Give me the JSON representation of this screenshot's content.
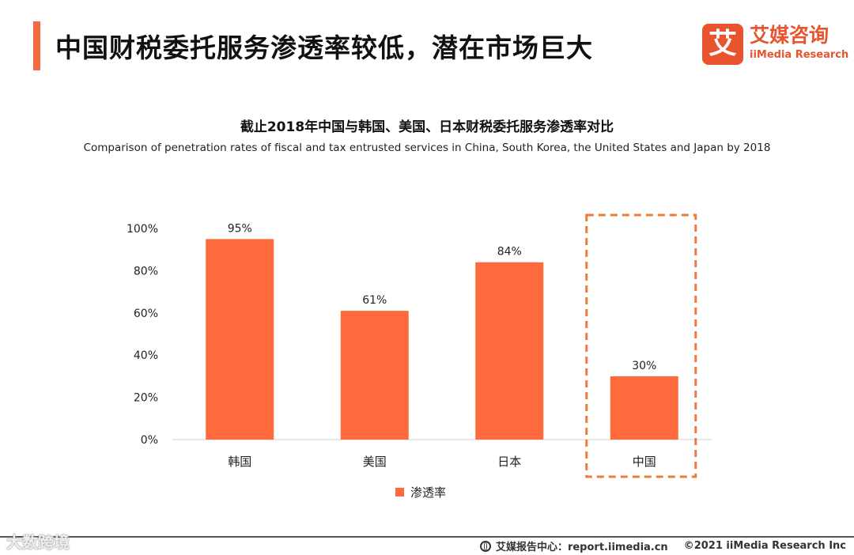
{
  "header": {
    "title": "中国财税委托服务渗透率较低，潜在市场巨大",
    "accent_color": "#f46a3e"
  },
  "brand": {
    "mark": "艾",
    "name": "艾媒咨询",
    "name_en": "iiMedia Research",
    "color": "#e8542e"
  },
  "chart_data": {
    "type": "bar",
    "title": "截止2018年中国与韩国、美国、日本财税委托服务渗透率对比",
    "subtitle": "Comparison of penetration rates of fiscal and tax entrusted services in China, South Korea, the United States and Japan by 2018",
    "categories": [
      "韩国",
      "美国",
      "日本",
      "中国"
    ],
    "series": [
      {
        "name": "渗透率",
        "values": [
          95,
          61,
          84,
          30
        ],
        "value_labels": [
          "95%",
          "61%",
          "84%",
          "30%"
        ],
        "color": "#ff6a3d"
      }
    ],
    "xlabel": "",
    "ylabel": "",
    "ylim": [
      0,
      100
    ],
    "yticks": [
      0,
      20,
      40,
      60,
      80,
      100
    ],
    "ytick_labels": [
      "0%",
      "20%",
      "40%",
      "60%",
      "80%",
      "100%"
    ],
    "grid": false,
    "legend_position": "bottom-center",
    "highlight_category": "中国",
    "highlight_color": "#ef7a3a"
  },
  "footer": {
    "watermark": "大数跨境",
    "source": "艾媒报告中心：report.iimedia.cn",
    "copyright": "©2021  iiMedia Research  Inc"
  }
}
